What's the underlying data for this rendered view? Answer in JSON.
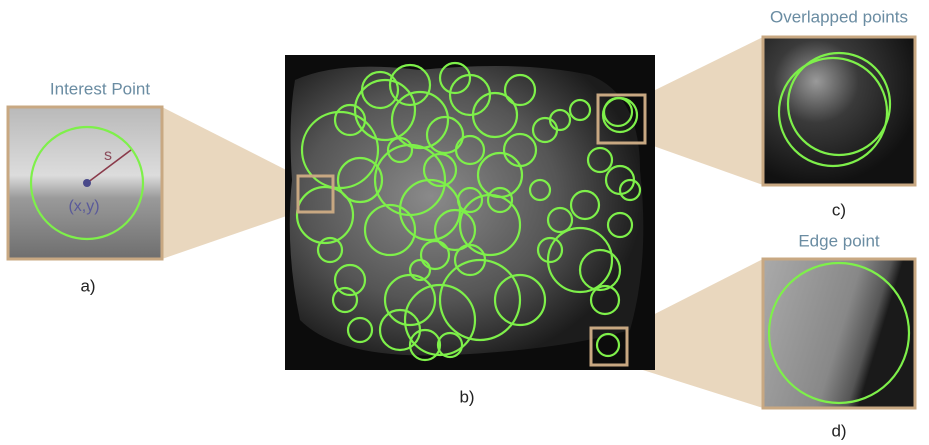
{
  "panel_a": {
    "title": "Interest Point",
    "scale_label": "s",
    "position_label": "(x,y)",
    "caption": "a)"
  },
  "panel_b": {
    "caption": "b)"
  },
  "panel_c": {
    "title": "Overlapped points",
    "caption": "c)"
  },
  "panel_d": {
    "title": "Edge point",
    "caption": "d)"
  }
}
